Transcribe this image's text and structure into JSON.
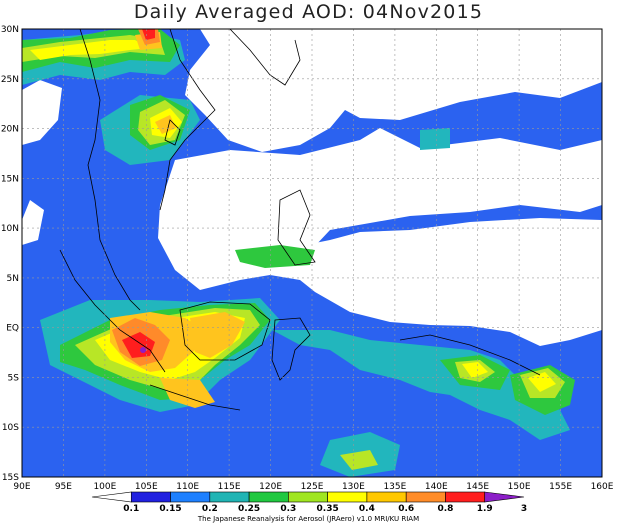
{
  "title": "Daily Averaged AOD: 04Nov2015",
  "map": {
    "lon_labels": [
      "90E",
      "95E",
      "100E",
      "105E",
      "110E",
      "115E",
      "120E",
      "125E",
      "130E",
      "135E",
      "140E",
      "145E",
      "150E",
      "155E",
      "160E"
    ],
    "lat_labels": [
      "30N",
      "25N",
      "20N",
      "15N",
      "10N",
      "5N",
      "EQ",
      "5S",
      "10S",
      "15S"
    ],
    "lon_range": [
      90,
      160
    ],
    "lat_range": [
      -15,
      30
    ],
    "grid": "dotted"
  },
  "colorbar": {
    "ticks": [
      "0.1",
      "0.15",
      "0.2",
      "0.25",
      "0.3",
      "0.35",
      "0.4",
      "0.6",
      "0.8",
      "1.9",
      "3"
    ],
    "colors": [
      "#ffffff",
      "#2020e0",
      "#1e80ff",
      "#20b4b4",
      "#20c840",
      "#a0e620",
      "#ffff00",
      "#ffc800",
      "#ff8c28",
      "#ff1e1e",
      "#8c1ec8"
    ]
  },
  "footer": "The Japanese Reanalysis for Aerosol (JRAero) v1.0 MRI/KU RIAM"
}
